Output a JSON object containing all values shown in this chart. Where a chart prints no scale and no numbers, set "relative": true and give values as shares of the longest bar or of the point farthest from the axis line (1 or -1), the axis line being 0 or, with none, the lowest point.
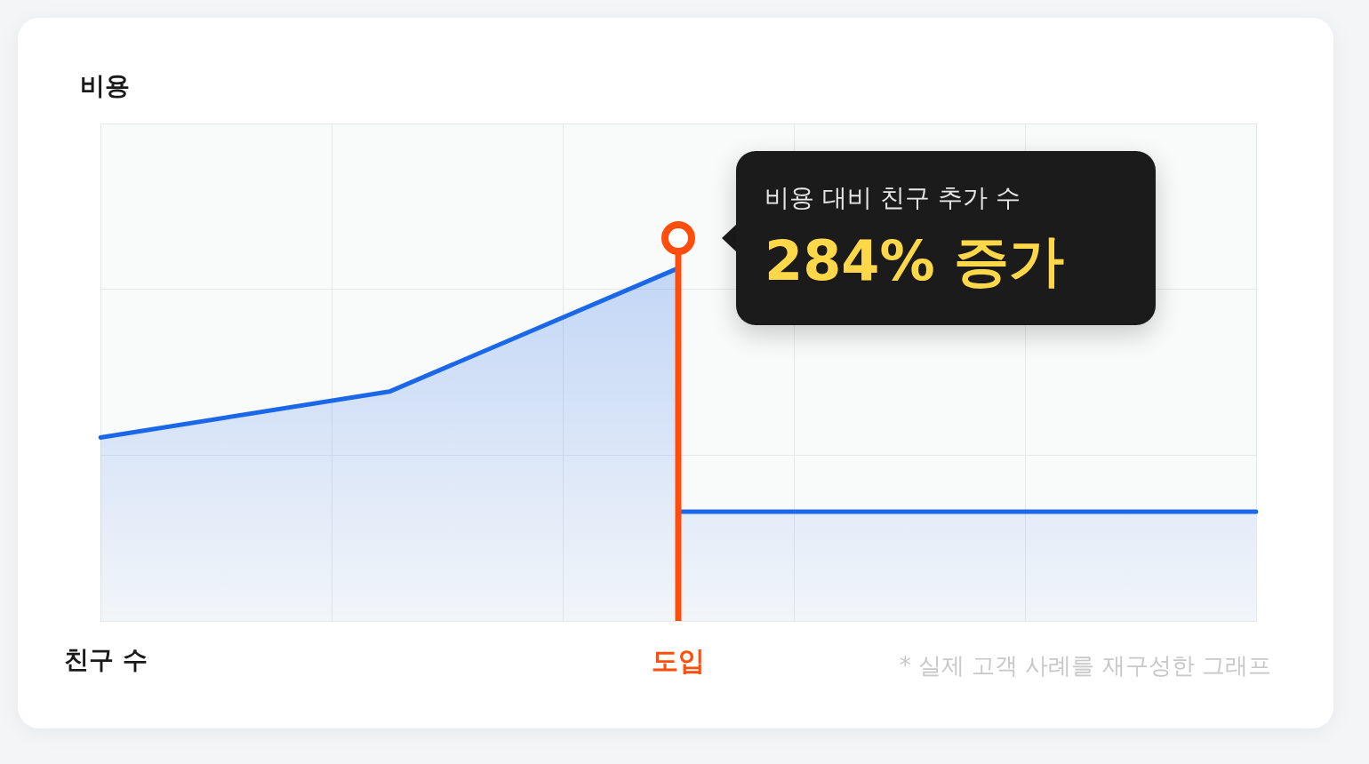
{
  "chart_data": {
    "type": "area",
    "relative": true,
    "xlabel": "친구 수",
    "categories": [
      null,
      null,
      null,
      null,
      null,
      null,
      null,
      null,
      null,
      null,
      null,
      null,
      null,
      null,
      null,
      null,
      null,
      null,
      null,
      null,
      null
    ],
    "series": [
      {
        "color": "#1a68e8",
        "values": [
          0.52,
          null,
          null,
          null,
          null,
          0.65,
          null,
          null,
          null,
          null,
          1,
          null,
          null,
          null,
          null,
          null,
          null,
          null,
          null,
          null,
          null
        ]
      },
      {
        "color": "#1a68e8",
        "values": [
          null,
          null,
          null,
          null,
          null,
          null,
          null,
          null,
          null,
          null,
          0.31,
          0.31,
          0.31,
          0.31,
          0.31,
          0.31,
          0.31,
          0.31,
          0.31,
          0.31,
          0.31
        ]
      }
    ],
    "annotations": [
      "비용 대비 친구 추가 수",
      "284% 증가",
      "* 실제 고객 사례를 재구성한 그래프",
      "비용",
      "도입"
    ],
    "grid": true,
    "legend": false,
    "marker": "none",
    "line_style": "solid"
  }
}
